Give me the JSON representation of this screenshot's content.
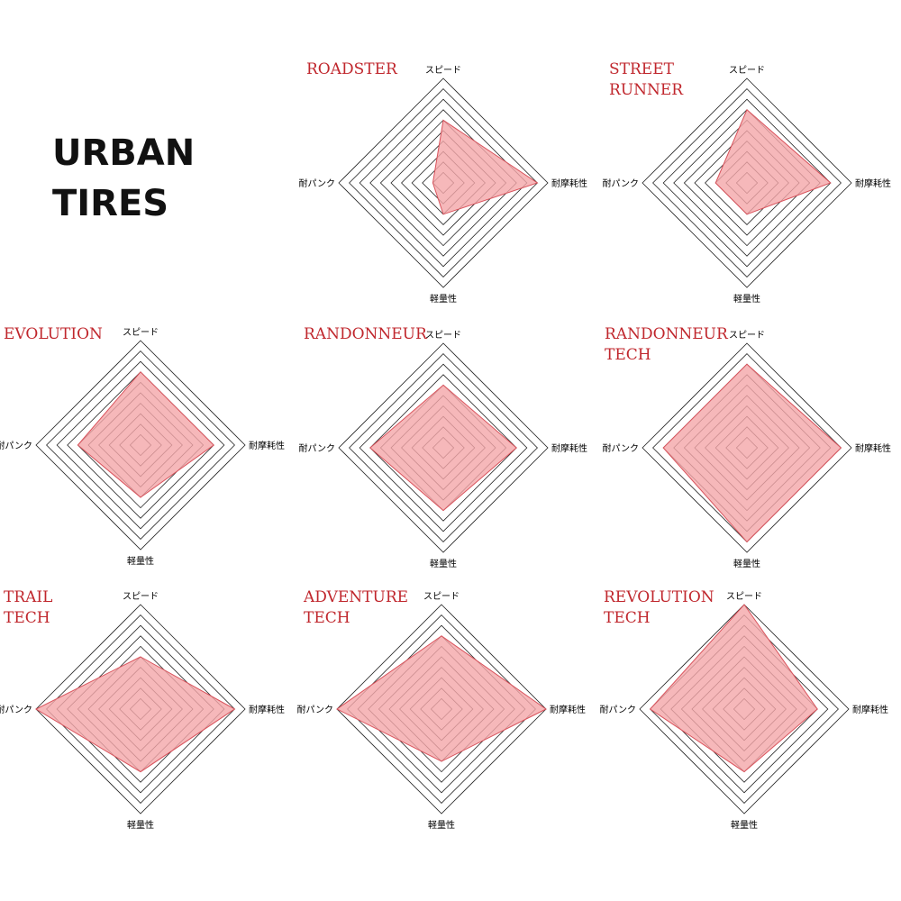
{
  "page": {
    "title": "URBAN\nTIRES"
  },
  "colors": {
    "title_red": "#c0272d",
    "fill": "#f4a6a9",
    "stroke": "#d9535c",
    "grid": "#222222"
  },
  "chart_data": [
    {
      "type": "radar",
      "title": [
        "ROADSTER"
      ],
      "axes": [
        "スピード",
        "耐摩耗性",
        "軽量性",
        "耐パンク"
      ],
      "max": 10,
      "levels": 10,
      "values": [
        6,
        9,
        3,
        1
      ]
    },
    {
      "type": "radar",
      "title": [
        "STREET",
        "RUNNER"
      ],
      "axes": [
        "スピード",
        "耐摩耗性",
        "軽量性",
        "耐パンク"
      ],
      "max": 10,
      "levels": 10,
      "values": [
        7,
        8,
        3,
        3
      ]
    },
    {
      "type": "radar",
      "title": [
        "EVOLUTION"
      ],
      "axes": [
        "スピード",
        "耐摩耗性",
        "軽量性",
        "耐パンク"
      ],
      "max": 10,
      "levels": 10,
      "values": [
        7,
        7,
        5,
        6
      ]
    },
    {
      "type": "radar",
      "title": [
        "RANDONNEUR"
      ],
      "axes": [
        "スピード",
        "耐摩耗性",
        "軽量性",
        "耐パンク"
      ],
      "max": 10,
      "levels": 10,
      "values": [
        6,
        7,
        6,
        7
      ]
    },
    {
      "type": "radar",
      "title": [
        "RANDONNEUR",
        "TECH"
      ],
      "axes": [
        "スピード",
        "耐摩耗性",
        "軽量性",
        "耐パンク"
      ],
      "max": 10,
      "levels": 10,
      "values": [
        8,
        9,
        9,
        8
      ]
    },
    {
      "type": "radar",
      "title": [
        "TRAIL",
        "TECH"
      ],
      "axes": [
        "スピード",
        "耐摩耗性",
        "軽量性",
        "耐パンク"
      ],
      "max": 10,
      "levels": 10,
      "values": [
        5,
        9,
        6,
        10
      ]
    },
    {
      "type": "radar",
      "title": [
        "ADVENTURE",
        "TECH"
      ],
      "axes": [
        "スピード",
        "耐摩耗性",
        "軽量性",
        "耐パンク"
      ],
      "max": 10,
      "levels": 10,
      "values": [
        7,
        10,
        5,
        10
      ]
    },
    {
      "type": "radar",
      "title": [
        "REVOLUTION",
        "TECH"
      ],
      "axes": [
        "スピード",
        "耐摩耗性",
        "軽量性",
        "耐パンク"
      ],
      "max": 10,
      "levels": 10,
      "values": [
        10,
        7,
        6,
        9
      ]
    }
  ]
}
